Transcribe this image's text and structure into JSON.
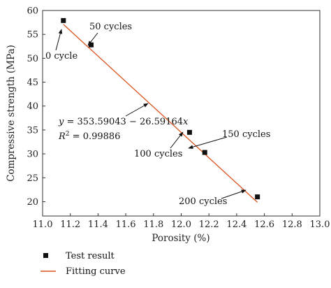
{
  "chart_data": {
    "type": "scatter",
    "xlabel": "Porosity (%)",
    "ylabel": "Compressive strength (MPa)",
    "xlim": [
      11.0,
      13.0
    ],
    "ylim": [
      17,
      60
    ],
    "x_ticks": [
      "11.0",
      "11.2",
      "11.4",
      "11.6",
      "11.8",
      "12.0",
      "12.2",
      "12.4",
      "12.6",
      "12.8",
      "13.0"
    ],
    "y_ticks": [
      "20",
      "25",
      "30",
      "35",
      "40",
      "45",
      "50",
      "55",
      "60"
    ],
    "grid": false,
    "points": [
      {
        "x": 11.15,
        "y": 57.9,
        "label": "0 cycle"
      },
      {
        "x": 11.35,
        "y": 52.8,
        "label": "50 cycles"
      },
      {
        "x": 12.06,
        "y": 34.5,
        "label": "100 cycles"
      },
      {
        "x": 12.17,
        "y": 30.3,
        "label": "150 cycles"
      },
      {
        "x": 12.55,
        "y": 21.0,
        "label": "200 cycles"
      }
    ],
    "fit": {
      "slope": -26.59164,
      "intercept": 353.59043,
      "x_range": [
        11.15,
        12.55
      ],
      "color": "#d9531e",
      "equation": {
        "y": "y",
        "eq": " = 353.59043 − 26.59164",
        "x": "x"
      },
      "r2": {
        "r": "R",
        "sup": "2",
        "val": " = 0.99886"
      }
    },
    "legend": {
      "placement": "bottom-left",
      "entries": [
        {
          "name": "Test result",
          "kind": "marker"
        },
        {
          "name": "Fitting curve",
          "kind": "line"
        }
      ]
    }
  }
}
